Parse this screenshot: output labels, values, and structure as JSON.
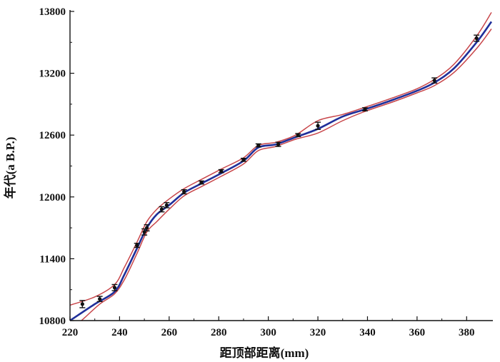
{
  "chart_data": {
    "type": "line",
    "title": "",
    "xlabel": "距顶部距离(mm)",
    "ylabel": "年代(a B.P.)",
    "xlim": [
      220,
      390
    ],
    "ylim": [
      10800,
      13800
    ],
    "x_ticks": [
      220,
      240,
      260,
      280,
      300,
      320,
      340,
      360,
      380
    ],
    "y_ticks": [
      10800,
      11400,
      12000,
      12600,
      13200,
      13800
    ],
    "x_tick_labels": [
      "220",
      "240",
      "260",
      "280",
      "300",
      "320",
      "340",
      "360",
      "380"
    ],
    "y_tick_labels": [
      "10800",
      "11400",
      "12000",
      "12600",
      "13200",
      "13800"
    ],
    "grid": false,
    "colors": {
      "model": "#1f2f9a",
      "bounds": "#c8464a",
      "points": "#111111"
    },
    "series": [
      {
        "role": "model",
        "points": [
          [
            220,
            10800
          ],
          [
            230,
            10960
          ],
          [
            238,
            11080
          ],
          [
            242,
            11250
          ],
          [
            247,
            11500
          ],
          [
            251,
            11700
          ],
          [
            255,
            11830
          ],
          [
            260,
            11920
          ],
          [
            266,
            12040
          ],
          [
            273,
            12130
          ],
          [
            281,
            12230
          ],
          [
            290,
            12350
          ],
          [
            296,
            12480
          ],
          [
            303,
            12510
          ],
          [
            311,
            12580
          ],
          [
            320,
            12660
          ],
          [
            330,
            12780
          ],
          [
            339,
            12850
          ],
          [
            350,
            12940
          ],
          [
            360,
            13030
          ],
          [
            367,
            13110
          ],
          [
            375,
            13250
          ],
          [
            384,
            13500
          ],
          [
            390,
            13700
          ]
        ]
      },
      {
        "role": "upper-bound",
        "points": [
          [
            220,
            10950
          ],
          [
            230,
            11030
          ],
          [
            238,
            11150
          ],
          [
            242,
            11320
          ],
          [
            247,
            11560
          ],
          [
            251,
            11760
          ],
          [
            255,
            11880
          ],
          [
            260,
            11980
          ],
          [
            266,
            12080
          ],
          [
            273,
            12170
          ],
          [
            281,
            12270
          ],
          [
            290,
            12380
          ],
          [
            296,
            12500
          ],
          [
            303,
            12530
          ],
          [
            311,
            12600
          ],
          [
            320,
            12740
          ],
          [
            330,
            12800
          ],
          [
            339,
            12870
          ],
          [
            350,
            12960
          ],
          [
            360,
            13050
          ],
          [
            367,
            13140
          ],
          [
            375,
            13290
          ],
          [
            384,
            13560
          ],
          [
            390,
            13790
          ]
        ]
      },
      {
        "role": "lower-bound",
        "points": [
          [
            220,
            10700
          ],
          [
            226,
            10830
          ],
          [
            232,
            10960
          ],
          [
            238,
            11060
          ],
          [
            242,
            11200
          ],
          [
            247,
            11450
          ],
          [
            251,
            11660
          ],
          [
            255,
            11760
          ],
          [
            260,
            11880
          ],
          [
            266,
            12010
          ],
          [
            273,
            12100
          ],
          [
            281,
            12200
          ],
          [
            290,
            12320
          ],
          [
            296,
            12450
          ],
          [
            303,
            12490
          ],
          [
            311,
            12560
          ],
          [
            320,
            12620
          ],
          [
            330,
            12740
          ],
          [
            339,
            12830
          ],
          [
            350,
            12920
          ],
          [
            360,
            13010
          ],
          [
            367,
            13080
          ],
          [
            375,
            13210
          ],
          [
            384,
            13440
          ],
          [
            390,
            13630
          ]
        ]
      }
    ],
    "dated_samples": [
      {
        "x": 225,
        "y": 10960,
        "err": 35
      },
      {
        "x": 232,
        "y": 11010,
        "err": 25
      },
      {
        "x": 238,
        "y": 11120,
        "err": 30
      },
      {
        "x": 247,
        "y": 11530,
        "err": 20
      },
      {
        "x": 250,
        "y": 11660,
        "err": 30
      },
      {
        "x": 251,
        "y": 11700,
        "err": 30
      },
      {
        "x": 257,
        "y": 11880,
        "err": 25
      },
      {
        "x": 259,
        "y": 11920,
        "err": 25
      },
      {
        "x": 266,
        "y": 12050,
        "err": 20
      },
      {
        "x": 273,
        "y": 12140,
        "err": 15
      },
      {
        "x": 281,
        "y": 12250,
        "err": 15
      },
      {
        "x": 290,
        "y": 12360,
        "err": 15
      },
      {
        "x": 296,
        "y": 12500,
        "err": 15
      },
      {
        "x": 304,
        "y": 12510,
        "err": 20
      },
      {
        "x": 312,
        "y": 12600,
        "err": 15
      },
      {
        "x": 320,
        "y": 12690,
        "err": 35
      },
      {
        "x": 339,
        "y": 12850,
        "err": 15
      },
      {
        "x": 367,
        "y": 13130,
        "err": 25
      },
      {
        "x": 384,
        "y": 13540,
        "err": 30
      }
    ]
  }
}
